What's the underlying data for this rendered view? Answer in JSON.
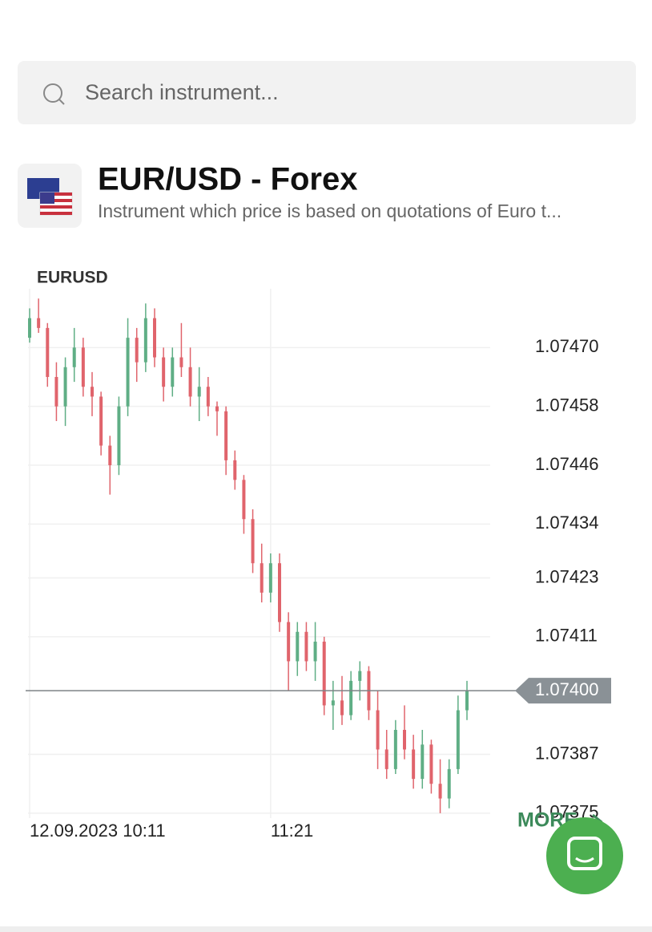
{
  "search": {
    "placeholder": "Search instrument..."
  },
  "instrument": {
    "title": "EUR/USD - Forex",
    "description": "Instrument which price is based on quotations of Euro t..."
  },
  "more": "MORE",
  "chart_data": {
    "type": "candlestick",
    "title": "EURUSD",
    "categories": [
      "12.09.2023 10:11",
      null,
      null,
      null,
      null,
      null,
      null,
      null,
      null,
      null,
      null,
      null,
      null,
      null,
      null,
      null,
      null,
      null,
      null,
      null,
      null,
      null,
      null,
      null,
      null,
      null,
      null,
      "11:21",
      null,
      null,
      null,
      null,
      null,
      null,
      null,
      null,
      null,
      null,
      null,
      null,
      null,
      null,
      null,
      null,
      null,
      null,
      null,
      null,
      null,
      null
    ],
    "open": [
      1.07472,
      1.07476,
      1.07474,
      1.07464,
      1.07458,
      1.07466,
      1.0747,
      1.07462,
      1.0746,
      1.0745,
      1.07446,
      1.07458,
      1.07472,
      1.07467,
      1.07476,
      1.07468,
      1.07462,
      1.07468,
      1.07466,
      1.0746,
      1.07462,
      1.07458,
      1.07457,
      1.07447,
      1.07443,
      1.07435,
      1.07426,
      1.0742,
      1.07426,
      1.07414,
      1.07406,
      1.07412,
      1.07406,
      1.0741,
      1.07397,
      1.07398,
      1.07395,
      1.07402,
      1.07404,
      1.07396,
      1.07388,
      1.07384,
      1.07392,
      1.07388,
      1.07382,
      1.07389,
      1.07381,
      1.07378,
      1.07384,
      1.07396
    ],
    "high": [
      1.07478,
      1.0748,
      1.07475,
      1.07467,
      1.07468,
      1.07474,
      1.07472,
      1.07465,
      1.07461,
      1.07452,
      1.0746,
      1.07476,
      1.07474,
      1.07479,
      1.07478,
      1.0747,
      1.0747,
      1.07475,
      1.0747,
      1.07466,
      1.07464,
      1.07459,
      1.07458,
      1.07449,
      1.07444,
      1.07437,
      1.0743,
      1.07428,
      1.07428,
      1.07416,
      1.07414,
      1.07414,
      1.07414,
      1.07411,
      1.07402,
      1.07403,
      1.07404,
      1.07406,
      1.07405,
      1.074,
      1.07392,
      1.07394,
      1.07397,
      1.07391,
      1.07392,
      1.0739,
      1.07386,
      1.07386,
      1.07399,
      1.07402
    ],
    "low": [
      1.07471,
      1.07473,
      1.07462,
      1.07455,
      1.07454,
      1.07463,
      1.0746,
      1.07456,
      1.07448,
      1.0744,
      1.07444,
      1.07456,
      1.07463,
      1.07465,
      1.07466,
      1.07459,
      1.0746,
      1.07464,
      1.07458,
      1.07455,
      1.07456,
      1.07452,
      1.07444,
      1.07441,
      1.07432,
      1.07424,
      1.07418,
      1.07418,
      1.07412,
      1.074,
      1.07403,
      1.07404,
      1.07402,
      1.07395,
      1.07392,
      1.07393,
      1.07394,
      1.07398,
      1.07394,
      1.07384,
      1.07382,
      1.07383,
      1.07386,
      1.0738,
      1.0738,
      1.07379,
      1.07375,
      1.07376,
      1.07383,
      1.07394
    ],
    "close": [
      1.07476,
      1.07474,
      1.07464,
      1.07458,
      1.07466,
      1.0747,
      1.07462,
      1.0746,
      1.0745,
      1.07446,
      1.07458,
      1.07472,
      1.07467,
      1.07476,
      1.07468,
      1.07462,
      1.07468,
      1.07466,
      1.0746,
      1.07462,
      1.07458,
      1.07457,
      1.07447,
      1.07443,
      1.07435,
      1.07426,
      1.0742,
      1.07426,
      1.07414,
      1.07406,
      1.07412,
      1.07406,
      1.0741,
      1.07397,
      1.07398,
      1.07395,
      1.07402,
      1.07404,
      1.07396,
      1.07388,
      1.07384,
      1.07392,
      1.07388,
      1.07382,
      1.07389,
      1.07381,
      1.07378,
      1.07384,
      1.07396,
      1.074
    ],
    "up_color": "#5fae85",
    "down_color": "#e0646c",
    "ylim": [
      1.07374,
      1.07482
    ],
    "yticks": [
      {
        "value": 1.0747,
        "label": "1.07470"
      },
      {
        "value": 1.07458,
        "label": "1.07458"
      },
      {
        "value": 1.07446,
        "label": "1.07446"
      },
      {
        "value": 1.07434,
        "label": "1.07434"
      },
      {
        "value": 1.07423,
        "label": "1.07423"
      },
      {
        "value": 1.07411,
        "label": "1.07411"
      },
      {
        "value": 1.07387,
        "label": "1.07387"
      },
      {
        "value": 1.07375,
        "label": "1.07375"
      }
    ],
    "last_price": {
      "value": 1.074,
      "label": "1.07400"
    },
    "grid": true
  }
}
